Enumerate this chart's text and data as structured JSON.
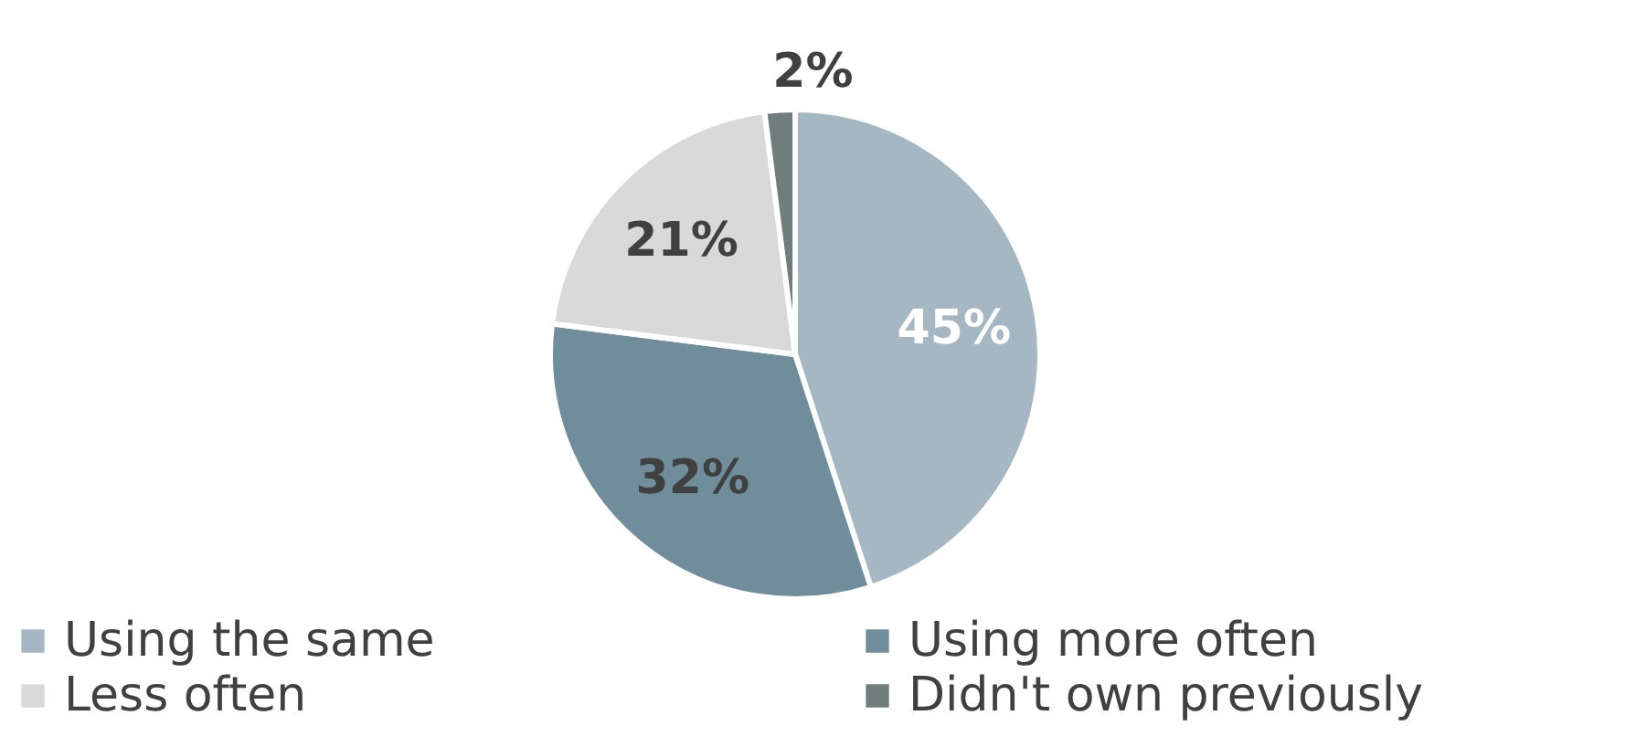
{
  "chart_data": {
    "type": "pie",
    "categories": [
      "Using the same",
      "Using more often",
      "Less often",
      "Didn't own previously"
    ],
    "values": [
      45,
      32,
      21,
      2
    ],
    "colors": [
      "#a5b7c2",
      "#6f8d9b",
      "#d9d9d9",
      "#6f7e7b"
    ],
    "value_labels": [
      "45%",
      "32%",
      "21%",
      "2%"
    ],
    "legend": "bottom"
  }
}
